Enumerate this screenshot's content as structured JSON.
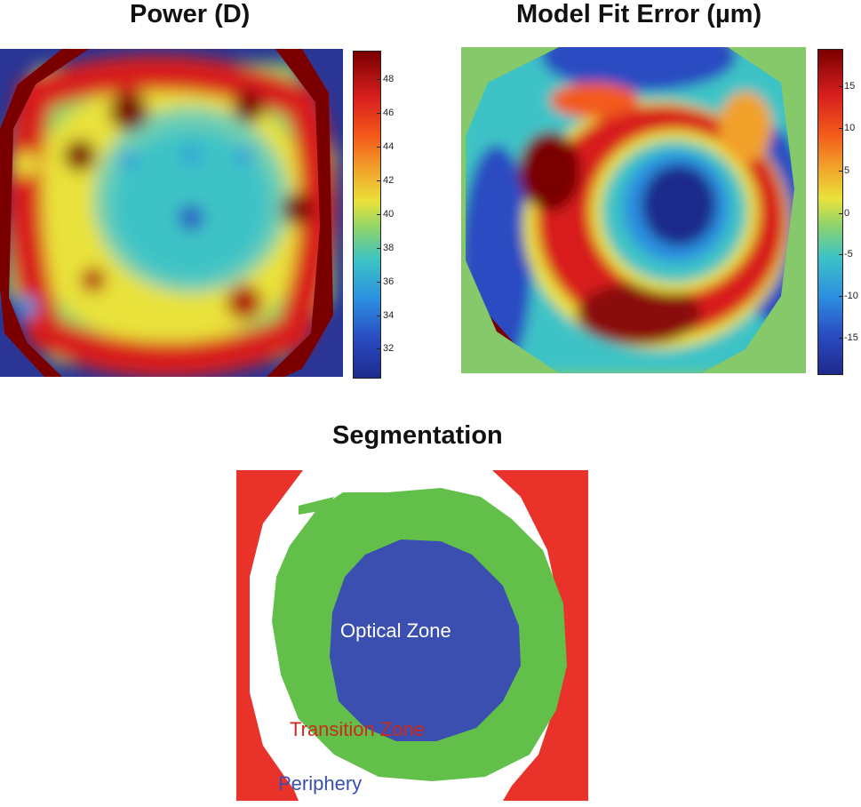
{
  "panels": {
    "power": {
      "title": "Power (D)",
      "colorbar_ticks": [
        "48",
        "46",
        "44",
        "42",
        "40",
        "38",
        "36",
        "34",
        "32"
      ]
    },
    "fit_error": {
      "title": "Model Fit Error (µm)",
      "colorbar_ticks": [
        "15",
        "10",
        "5",
        "0",
        "-5",
        "-10",
        "-15"
      ]
    },
    "segmentation": {
      "title": "Segmentation",
      "labels": {
        "optical": "Optical Zone",
        "transition": "Transition Zone",
        "periphery": "Periphery"
      }
    }
  },
  "colors": {
    "optical_zone": "#3a4fb0",
    "transition_zone": "#62bf4a",
    "periphery": "#e8322a",
    "map_blue": "#2a3595",
    "map_red": "#d81e1e",
    "map_dark_red": "#7a0000"
  }
}
